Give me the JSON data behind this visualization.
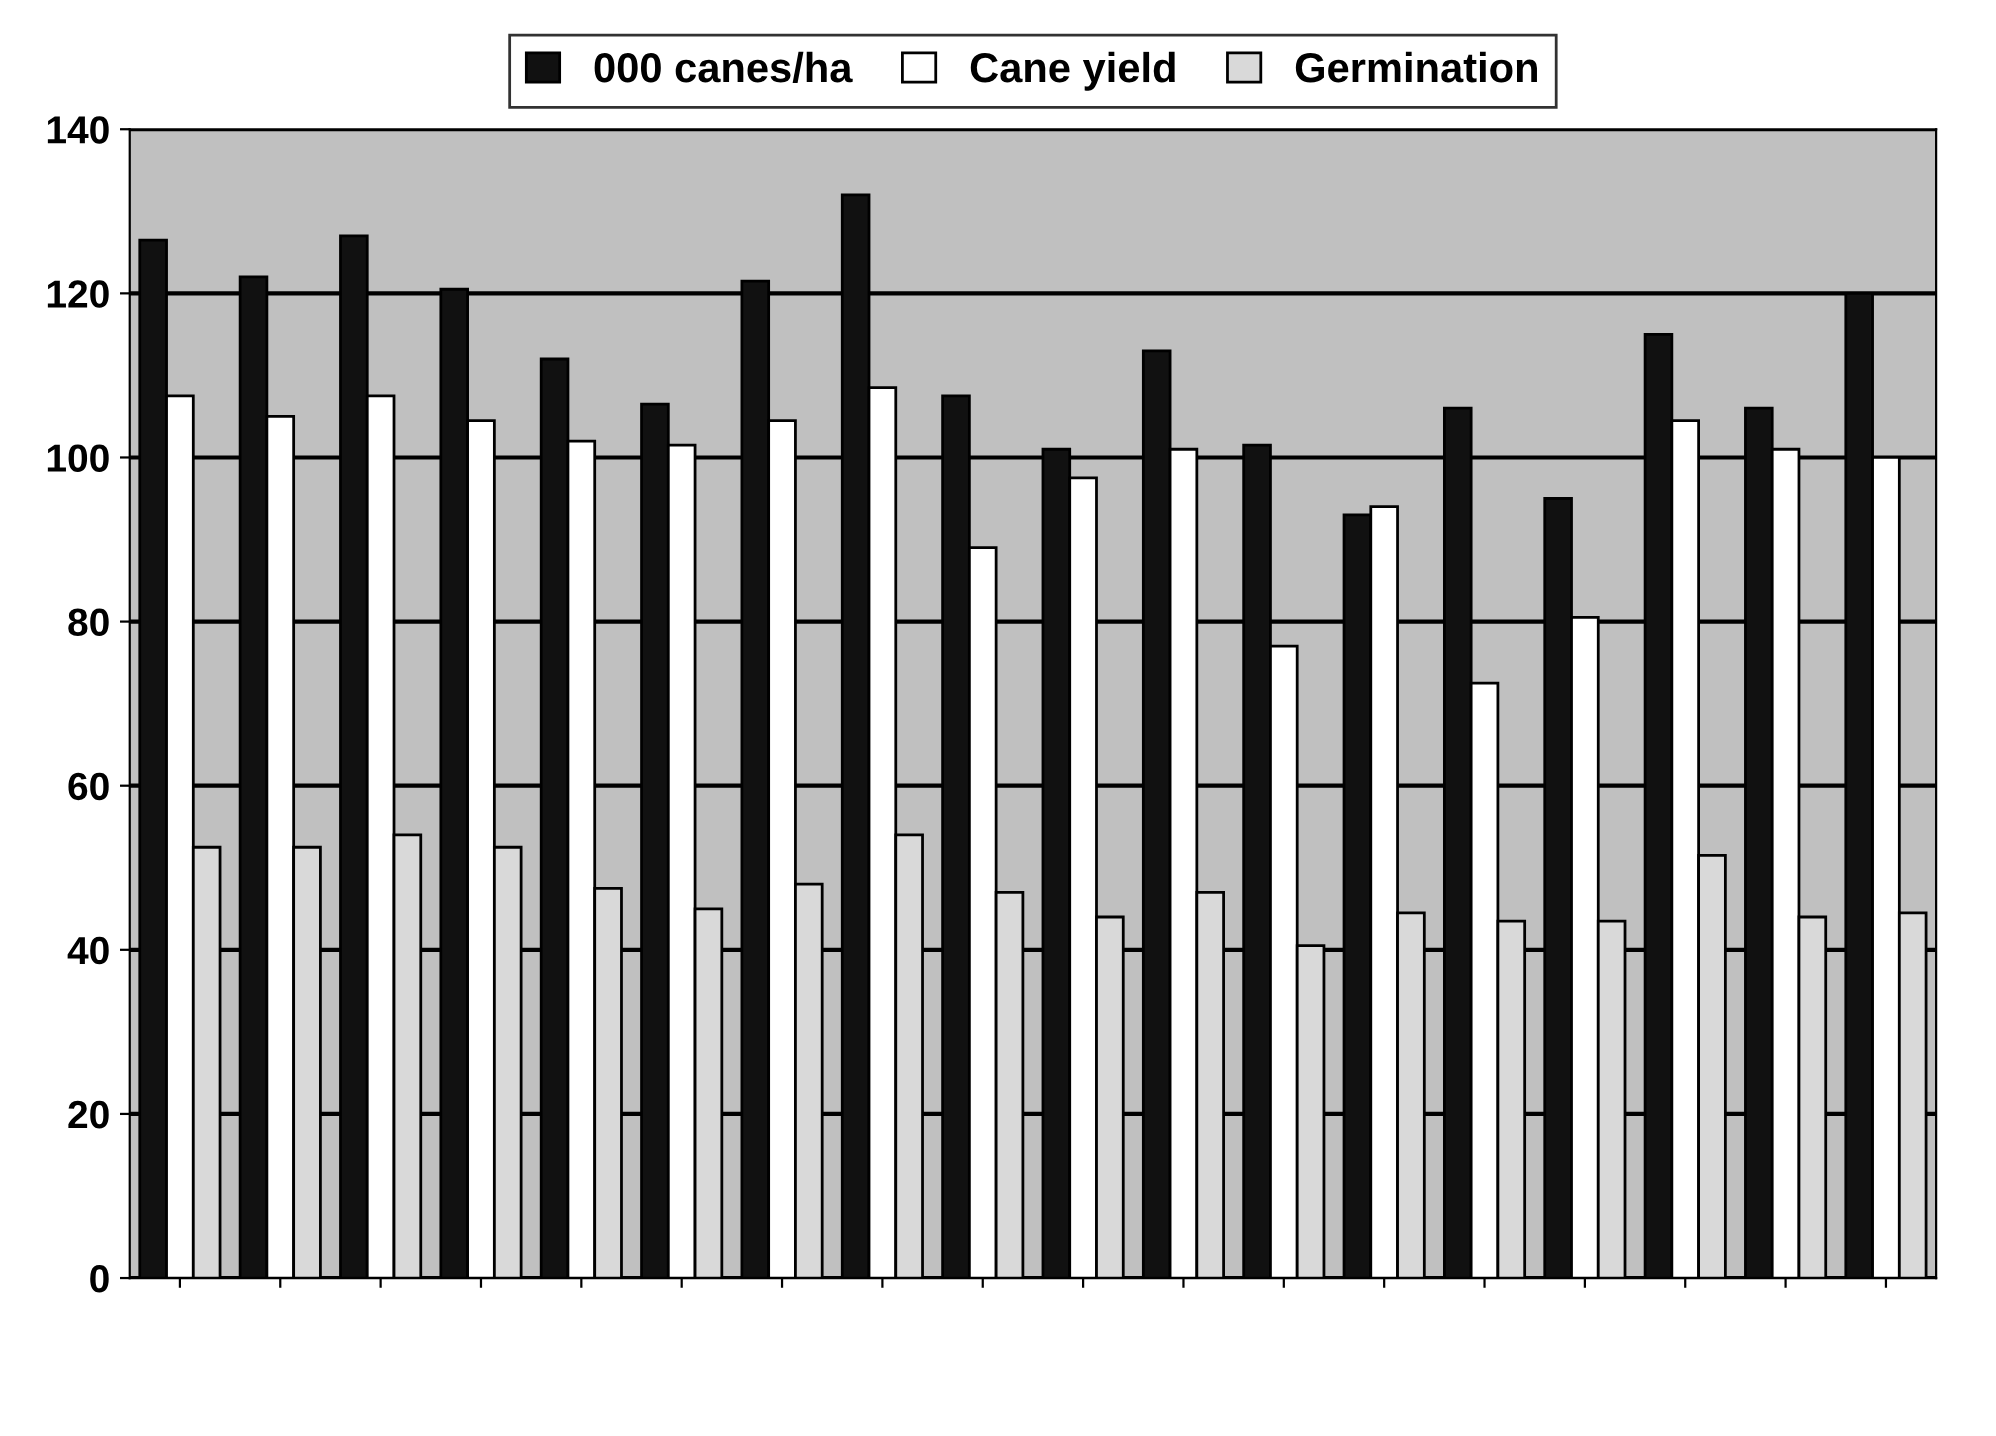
{
  "chart_data": {
    "type": "bar",
    "categories": [
      null,
      null,
      null,
      null,
      null,
      null,
      null,
      null,
      null,
      null,
      null,
      null,
      null,
      null,
      null,
      null,
      null,
      null
    ],
    "series": [
      {
        "name": "000 canes/ha",
        "color": "#111111",
        "values": [
          126.5,
          122,
          127,
          120.5,
          112,
          106.5,
          121.5,
          132,
          107.5,
          101,
          113,
          101.5,
          93,
          106,
          95,
          115,
          106,
          120
        ]
      },
      {
        "name": "Cane yield",
        "color": "#ffffff",
        "values": [
          107.5,
          105,
          107.5,
          104.5,
          102,
          101.5,
          104.5,
          108.5,
          89,
          97.5,
          101,
          77,
          94,
          72.5,
          80.5,
          104.5,
          101,
          100
        ]
      },
      {
        "name": "Germination",
        "color": "#d9d9d9",
        "values": [
          52.5,
          52.5,
          54,
          52.5,
          47.5,
          45,
          48,
          54,
          47,
          44,
          47,
          40.5,
          44.5,
          43.5,
          43.5,
          51.5,
          44,
          44.5
        ]
      }
    ],
    "ylim": [
      0,
      140
    ],
    "yticks": [
      0,
      20,
      40,
      60,
      80,
      100,
      120,
      140
    ],
    "grid": "y",
    "legend": "top"
  }
}
